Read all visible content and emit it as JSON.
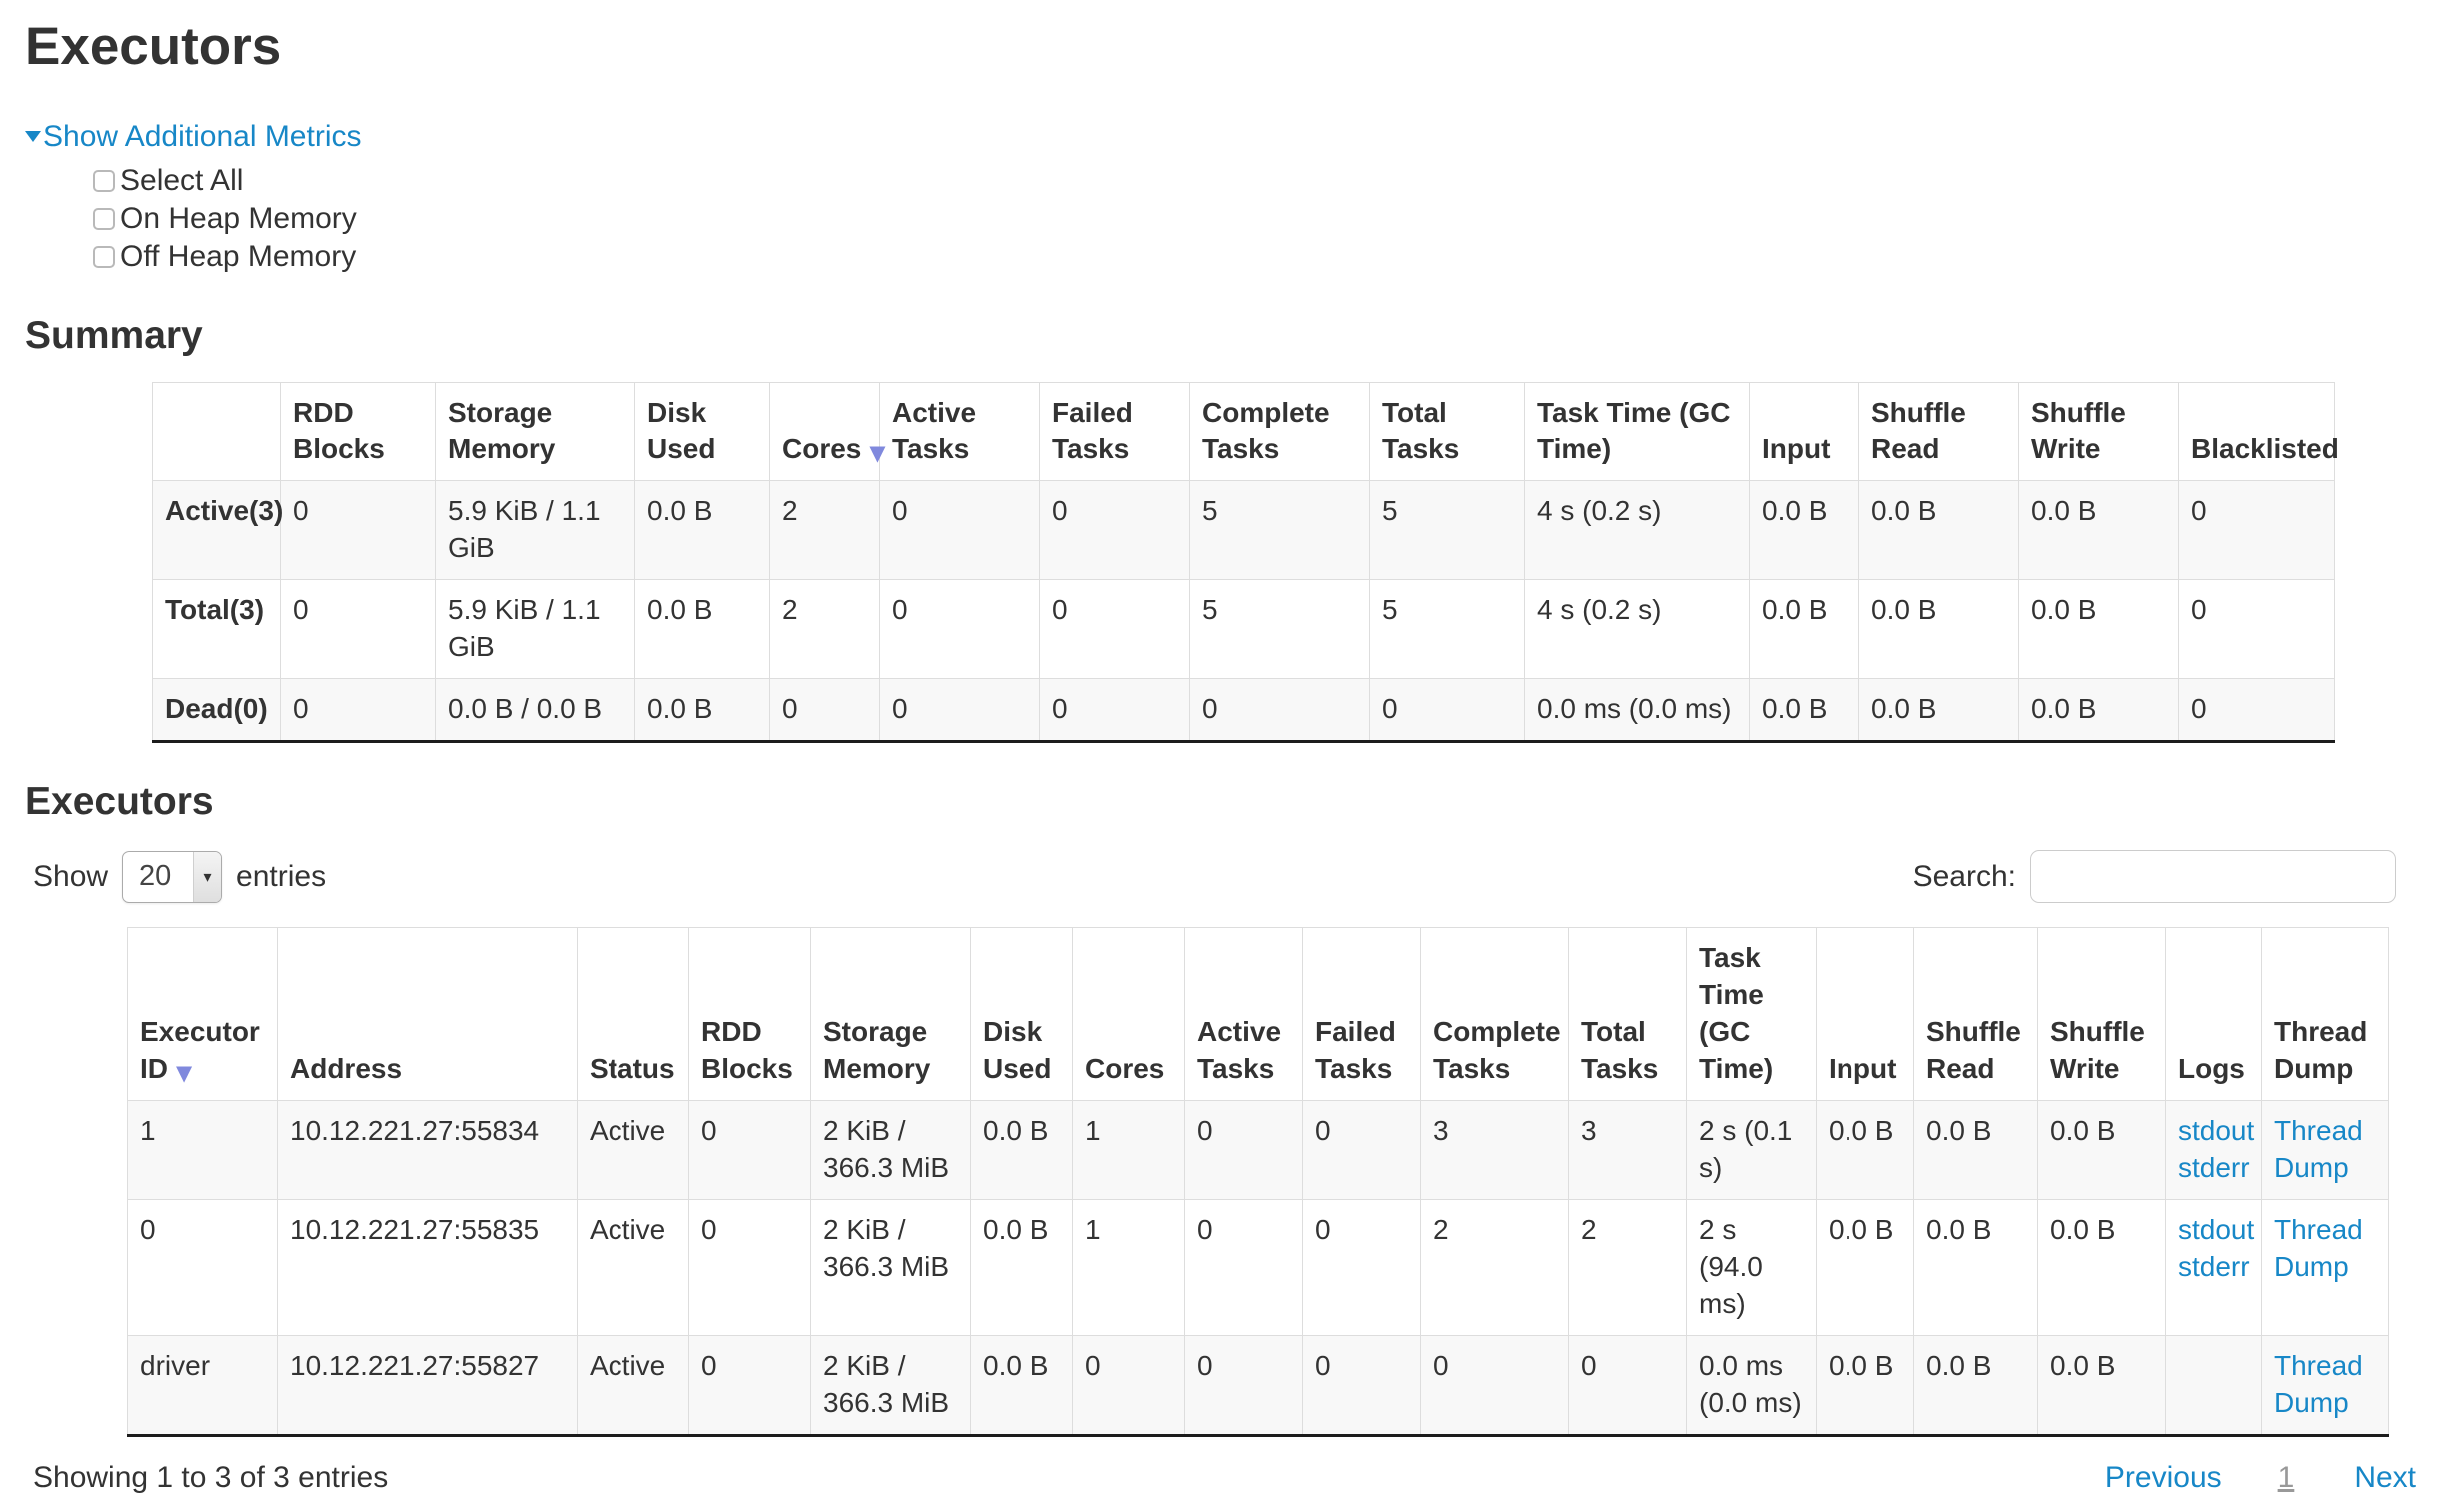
{
  "page_title": "Executors",
  "metrics_toggle": {
    "label": "Show Additional Metrics",
    "items": [
      "Select All",
      "On Heap Memory",
      "Off Heap Memory"
    ]
  },
  "summary_section": {
    "heading": "Summary",
    "table": {
      "columns": [
        "",
        "RDD Blocks",
        "Storage Memory",
        "Disk Used",
        "Cores",
        "Active Tasks",
        "Failed Tasks",
        "Complete Tasks",
        "Total Tasks",
        "Task Time (GC Time)",
        "Input",
        "Shuffle Read",
        "Shuffle Write",
        "Blacklisted"
      ],
      "sorted_column": "Cores",
      "rows": [
        {
          "cells": [
            "Active(3)",
            "0",
            "5.9 KiB / 1.1 GiB",
            "0.0 B",
            "2",
            "0",
            "0",
            "5",
            "5",
            "4 s (0.2 s)",
            "0.0 B",
            "0.0 B",
            "0.0 B",
            "0"
          ]
        },
        {
          "cells": [
            "Total(3)",
            "0",
            "5.9 KiB / 1.1 GiB",
            "0.0 B",
            "2",
            "0",
            "0",
            "5",
            "5",
            "4 s (0.2 s)",
            "0.0 B",
            "0.0 B",
            "0.0 B",
            "0"
          ]
        },
        {
          "cells": [
            "Dead(0)",
            "0",
            "0.0 B / 0.0 B",
            "0.0 B",
            "0",
            "0",
            "0",
            "0",
            "0",
            "0.0 ms (0.0 ms)",
            "0.0 B",
            "0.0 B",
            "0.0 B",
            "0"
          ]
        }
      ]
    }
  },
  "executors_section": {
    "heading": "Executors",
    "length_control": {
      "prefix": "Show",
      "value": "20",
      "suffix": "entries"
    },
    "search": {
      "label": "Search:",
      "value": ""
    },
    "table": {
      "columns": [
        "Executor ID",
        "Address",
        "Status",
        "RDD Blocks",
        "Storage Memory",
        "Disk Used",
        "Cores",
        "Active Tasks",
        "Failed Tasks",
        "Complete Tasks",
        "Total Tasks",
        "Task Time (GC Time)",
        "Input",
        "Shuffle Read",
        "Shuffle Write",
        "Logs",
        "Thread Dump"
      ],
      "sorted_column": "Executor ID",
      "rows": [
        {
          "cells": [
            "1",
            "10.12.221.27:55834",
            "Active",
            "0",
            "2 KiB / 366.3 MiB",
            "0.0 B",
            "1",
            "0",
            "0",
            "3",
            "3",
            "2 s (0.1 s)",
            "0.0 B",
            "0.0 B",
            "0.0 B"
          ],
          "logs": [
            "stdout",
            "stderr"
          ],
          "thread_dump": "Thread Dump"
        },
        {
          "cells": [
            "0",
            "10.12.221.27:55835",
            "Active",
            "0",
            "2 KiB / 366.3 MiB",
            "0.0 B",
            "1",
            "0",
            "0",
            "2",
            "2",
            "2 s (94.0 ms)",
            "0.0 B",
            "0.0 B",
            "0.0 B"
          ],
          "logs": [
            "stdout",
            "stderr"
          ],
          "thread_dump": "Thread Dump"
        },
        {
          "cells": [
            "driver",
            "10.12.221.27:55827",
            "Active",
            "0",
            "2 KiB / 366.3 MiB",
            "0.0 B",
            "0",
            "0",
            "0",
            "0",
            "0",
            "0.0 ms (0.0 ms)",
            "0.0 B",
            "0.0 B",
            "0.0 B"
          ],
          "logs": [],
          "thread_dump": "Thread Dump"
        }
      ]
    },
    "footer": {
      "status": "Showing 1 to 3 of 3 entries",
      "pagination": {
        "previous": "Previous",
        "current_page": "1",
        "next": "Next"
      }
    }
  },
  "colors": {
    "link": "#1787c7",
    "sort_arrow": "#8089dd",
    "stripe": "#f8f8f8"
  }
}
